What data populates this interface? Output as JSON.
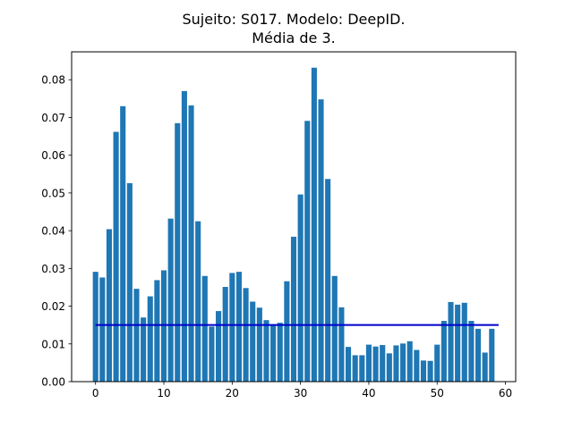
{
  "chart_data": {
    "type": "bar",
    "title_line1": "Sujeito: S017. Modelo: DeepID.",
    "title_line2": "Média de 3.",
    "xlabel": "",
    "ylabel": "",
    "xlim": [
      -3.5,
      61.5
    ],
    "ylim": [
      0,
      0.0874
    ],
    "x": [
      0,
      1,
      2,
      3,
      4,
      5,
      6,
      7,
      8,
      9,
      10,
      11,
      12,
      13,
      14,
      15,
      16,
      17,
      18,
      19,
      20,
      21,
      22,
      23,
      24,
      25,
      26,
      27,
      28,
      29,
      30,
      31,
      32,
      33,
      34,
      35,
      36,
      37,
      38,
      39,
      40,
      41,
      42,
      43,
      44,
      45,
      46,
      47,
      48,
      49,
      50,
      51,
      52,
      53,
      54,
      55,
      56,
      57,
      58
    ],
    "values": [
      0.0291,
      0.0276,
      0.0404,
      0.0662,
      0.073,
      0.0526,
      0.0246,
      0.017,
      0.0226,
      0.0269,
      0.0295,
      0.0432,
      0.0685,
      0.077,
      0.0732,
      0.0425,
      0.028,
      0.0146,
      0.0187,
      0.0251,
      0.0288,
      0.0291,
      0.0248,
      0.0212,
      0.0196,
      0.0163,
      0.0152,
      0.0156,
      0.0266,
      0.0384,
      0.0496,
      0.0691,
      0.0832,
      0.0748,
      0.0537,
      0.028,
      0.0197,
      0.0092,
      0.007,
      0.007,
      0.0098,
      0.0093,
      0.0097,
      0.0075,
      0.0096,
      0.0101,
      0.0107,
      0.0084,
      0.0056,
      0.0055,
      0.0098,
      0.0161,
      0.0211,
      0.0204,
      0.0209,
      0.0161,
      0.014,
      0.0077,
      0.014
    ],
    "bar_width": 0.8,
    "bar_color": "#1f77b4",
    "reference_line": {
      "y": 0.015,
      "x_start": 0,
      "x_end": 59,
      "color": "#0000cd"
    },
    "x_ticks": [
      0,
      10,
      20,
      30,
      40,
      50,
      60
    ],
    "x_tick_labels": [
      "0",
      "10",
      "20",
      "30",
      "40",
      "50",
      "60"
    ],
    "y_ticks": [
      0,
      0.01,
      0.02,
      0.03,
      0.04,
      0.05,
      0.06,
      0.07,
      0.08
    ],
    "y_tick_labels": [
      "0.00",
      "0.01",
      "0.02",
      "0.03",
      "0.04",
      "0.05",
      "0.06",
      "0.07",
      "0.08"
    ],
    "grid": false,
    "legend": "none"
  }
}
